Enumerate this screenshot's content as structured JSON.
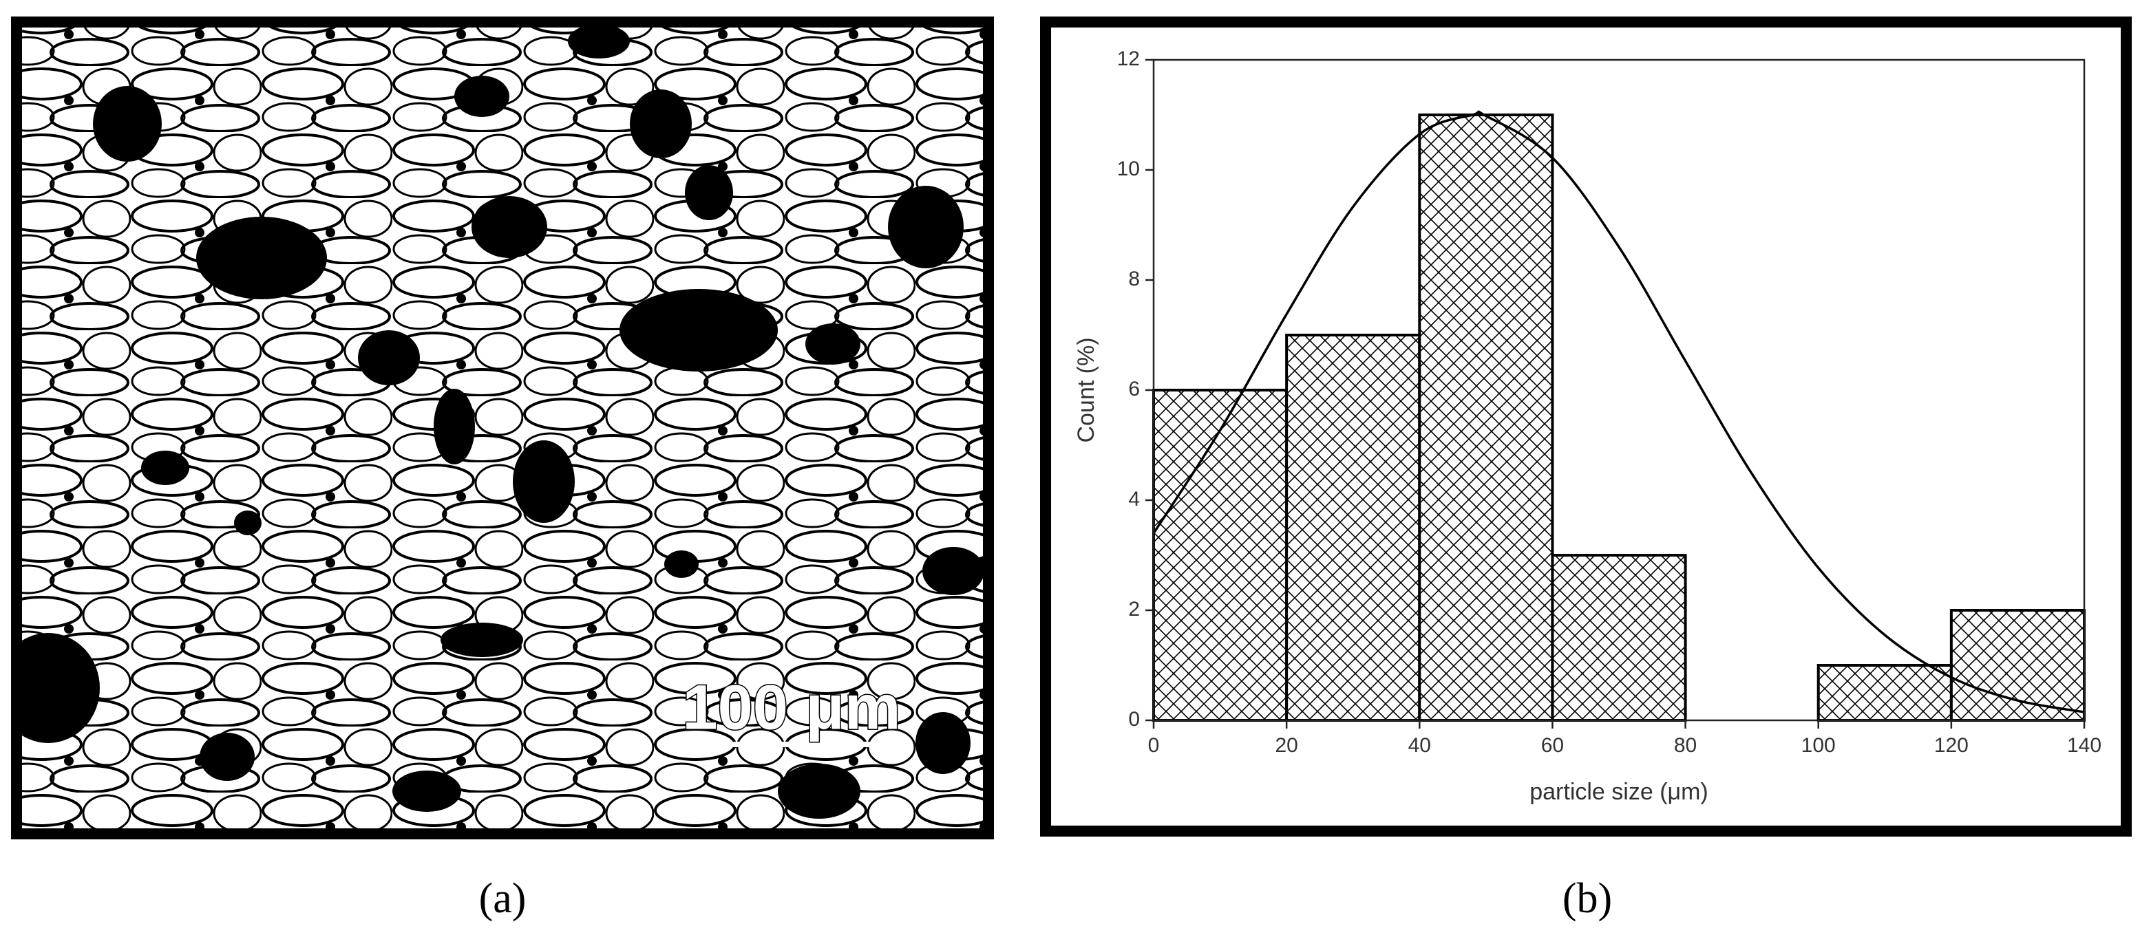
{
  "micrograph": {
    "scale_bar_label": "100 μm"
  },
  "captions": [
    "(a)",
    "(b)"
  ],
  "chart_data": {
    "type": "histogram",
    "xlabel": "particle size (μm)",
    "ylabel": "Count (%)",
    "bins": [
      0,
      20,
      40,
      60,
      80,
      100,
      120,
      140
    ],
    "values": [
      6,
      7,
      11,
      3,
      0,
      1,
      2
    ],
    "curve": {
      "x": [
        0,
        10,
        20,
        30,
        40,
        48,
        50,
        60,
        70,
        80,
        90,
        100,
        110,
        120,
        130,
        140
      ],
      "values": [
        3.4,
        5.27,
        7.38,
        9.33,
        10.65,
        11,
        10.98,
        10.22,
        8.6,
        6.53,
        4.48,
        2.77,
        1.55,
        0.78,
        0.36,
        0.15
      ]
    },
    "xlim": [
      0,
      140
    ],
    "ylim": [
      0,
      12
    ],
    "xticks": [
      0,
      20,
      40,
      60,
      80,
      100,
      120,
      140
    ],
    "yticks": [
      0,
      2,
      4,
      6,
      8,
      10,
      12
    ],
    "color": "#000000",
    "hatch": true
  }
}
